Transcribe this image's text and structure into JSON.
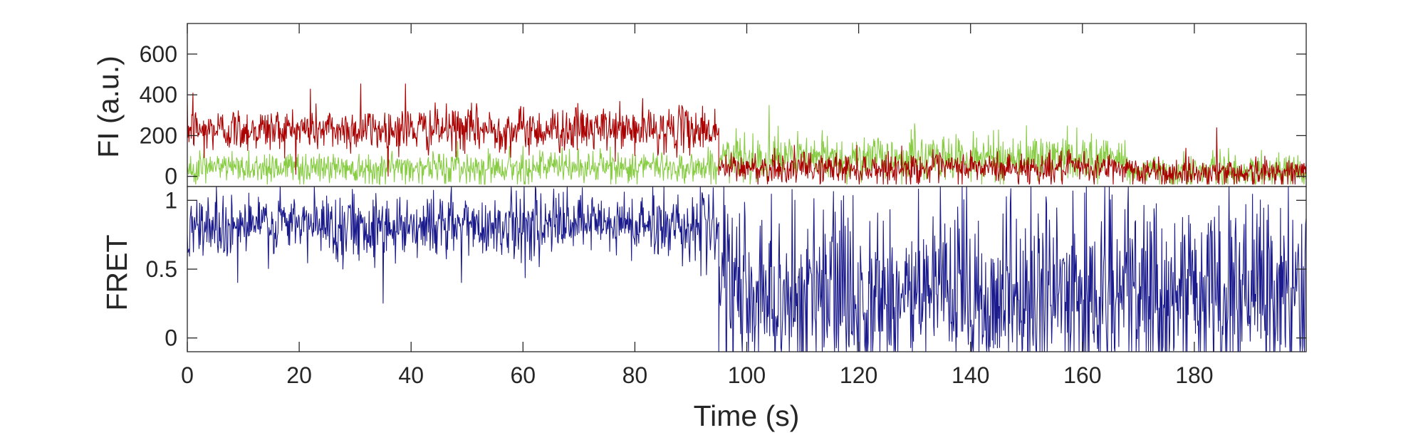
{
  "chart_data": [
    {
      "type": "line",
      "panel": "top",
      "xlabel": "",
      "ylabel": "FI (a.u.)",
      "xlim": [
        0,
        200
      ],
      "ylim": [
        -50,
        750
      ],
      "yticks": [
        0,
        200,
        400,
        600
      ],
      "ytick_labels": [
        "0",
        "200",
        "400",
        "600"
      ],
      "grid": false,
      "series": [
        {
          "color": "#aa0000",
          "segments": [
            {
              "t0": 0,
              "t1": 95,
              "mean": 230,
              "sd": 55,
              "extremes": [
                [
                  1,
                  410
                ],
                [
                  31,
                  455
                ],
                [
                  39,
                  455
                ],
                [
                  22,
                  430
                ],
                [
                  3,
                  90
                ],
                [
                  80,
                  100
                ]
              ]
            },
            {
              "t0": 95,
              "t1": 170,
              "mean": 40,
              "sd": 38,
              "extremes": [
                [
                  105,
                  140
                ],
                [
                  140,
                  130
                ],
                [
                  155,
                  -30
                ]
              ]
            },
            {
              "t0": 170,
              "t1": 200,
              "mean": 20,
              "sd": 35,
              "extremes": [
                [
                  184,
                  240
                ],
                [
                  175,
                  -35
                ]
              ]
            }
          ]
        },
        {
          "color": "#88cc44",
          "segments": [
            {
              "t0": 0,
              "t1": 95,
              "mean": 45,
              "sd": 40,
              "extremes": [
                [
                  3,
                  140
                ],
                [
                  60,
                  150
                ]
              ]
            },
            {
              "t0": 95,
              "t1": 168,
              "mean": 90,
              "sd": 55,
              "extremes": [
                [
                  104,
                  350
                ],
                [
                  130,
                  260
                ],
                [
                  150,
                  250
                ],
                [
                  159,
                  240
                ]
              ]
            },
            {
              "t0": 168,
              "t1": 200,
              "mean": 25,
              "sd": 40,
              "extremes": [
                [
                  192,
                  130
                ],
                [
                  185,
                  -40
                ]
              ]
            }
          ]
        }
      ]
    },
    {
      "type": "line",
      "panel": "bottom",
      "xlabel": "Time (s)",
      "ylabel": "FRET",
      "xlim": [
        0,
        200
      ],
      "ylim": [
        -0.1,
        1.1
      ],
      "xticks": [
        0,
        20,
        40,
        60,
        80,
        100,
        120,
        140,
        160,
        180
      ],
      "xtick_labels": [
        "0",
        "20",
        "40",
        "60",
        "80",
        "100",
        "120",
        "140",
        "160",
        "180"
      ],
      "yticks": [
        0,
        0.5,
        1
      ],
      "ytick_labels": [
        "0",
        "0.5",
        "1"
      ],
      "grid": false,
      "series": [
        {
          "color": "#1a1a8c",
          "segments": [
            {
              "t0": 0,
              "t1": 95,
              "mean": 0.82,
              "sd": 0.12,
              "extremes": [
                [
                  35,
                  0.25
                ],
                [
                  49,
                  0.4
                ],
                [
                  9,
                  0.4
                ]
              ]
            },
            {
              "t0": 95,
              "t1": 200,
              "mean": 0.3,
              "sd": 0.35,
              "extremes": []
            }
          ]
        }
      ]
    }
  ],
  "colors": {
    "axis": "#262626",
    "donor": "#88cc44",
    "acceptor": "#aa0000",
    "fret": "#1a1a8c"
  }
}
